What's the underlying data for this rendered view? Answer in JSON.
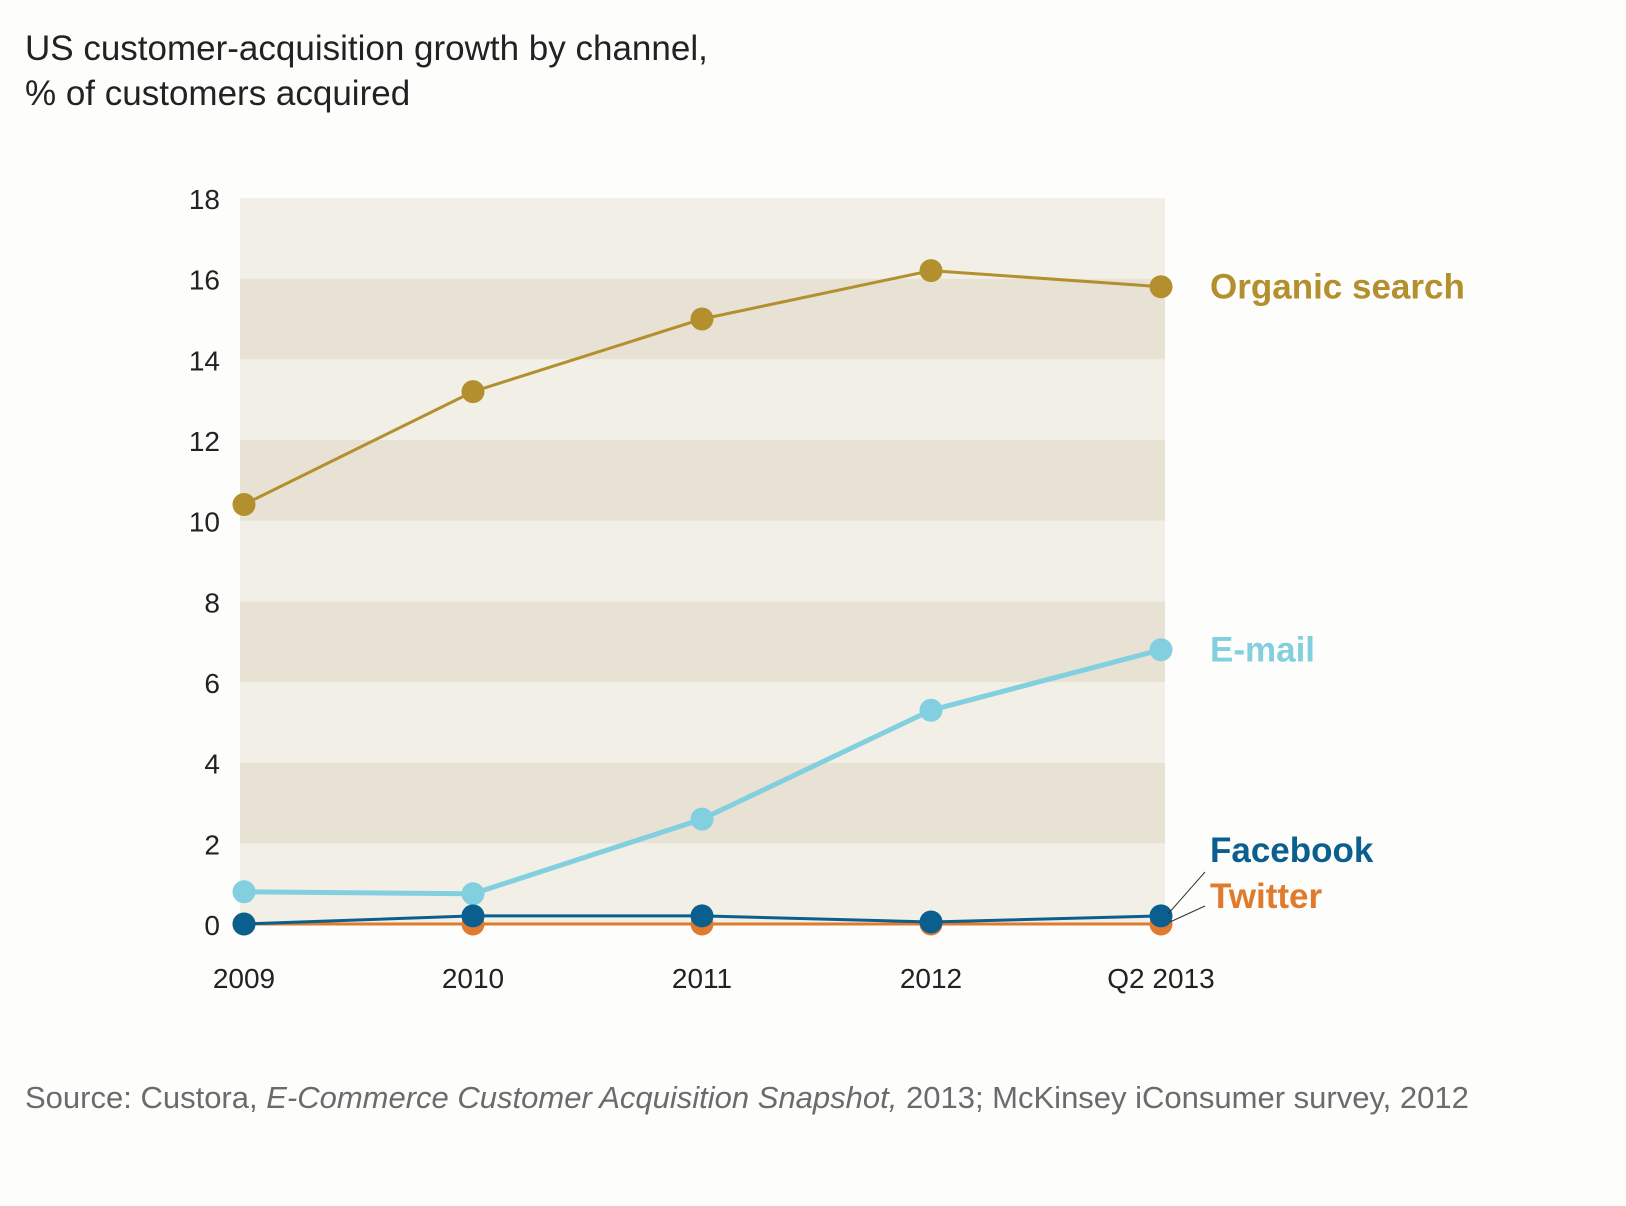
{
  "title_line1": "US customer-acquisition growth by channel,",
  "title_line2": "% of customers acquired",
  "source": {
    "prefix": "Source: Custora, ",
    "italic": "E-Commerce Customer Acquisition Snapshot,",
    "suffix": " 2013; McKinsey iConsumer survey, 2012"
  },
  "chart_data": {
    "type": "line",
    "categories": [
      "2009",
      "2010",
      "2011",
      "2012",
      "Q2 2013"
    ],
    "ylim": [
      0,
      18
    ],
    "yticks": [
      "0",
      "2",
      "4",
      "6",
      "8",
      "10",
      "12",
      "14",
      "16",
      "18"
    ],
    "grid": "alternating horizontal bands",
    "legend": "direct labels at right",
    "band_colors": [
      "#f1efe6",
      "#e7e2d3"
    ],
    "series": [
      {
        "name": "Organic search",
        "color": "#b38f2e",
        "values": [
          10.4,
          13.2,
          15.0,
          16.2,
          15.8
        ]
      },
      {
        "name": "E-mail",
        "color": "#82cfe0",
        "values": [
          0.8,
          0.75,
          2.6,
          5.3,
          6.8
        ]
      },
      {
        "name": "Facebook",
        "color": "#0b5f8e",
        "values": [
          0.0,
          0.2,
          0.2,
          0.05,
          0.2
        ]
      },
      {
        "name": "Twitter",
        "color": "#e07a2c",
        "values": [
          0.0,
          0.0,
          0.0,
          0.0,
          0.0
        ]
      }
    ]
  }
}
